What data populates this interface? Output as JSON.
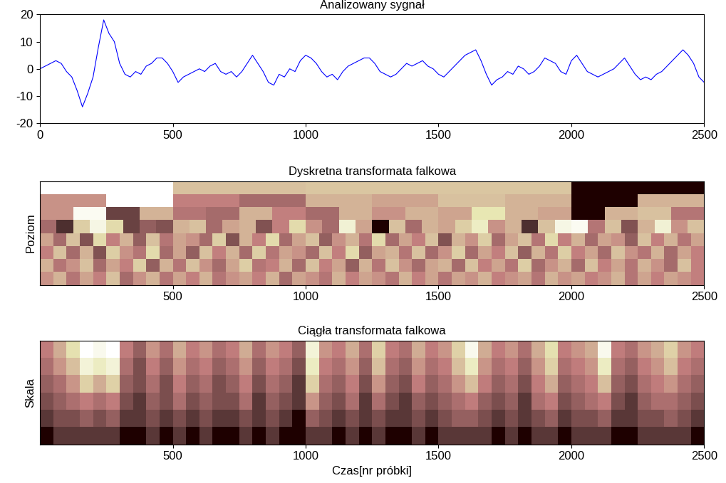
{
  "chart_data": [
    {
      "type": "line",
      "title": "Analizowany sygnał",
      "color": "#0000ff",
      "x": [
        0,
        20,
        40,
        60,
        80,
        100,
        120,
        140,
        160,
        180,
        200,
        220,
        240,
        260,
        280,
        300,
        320,
        340,
        360,
        380,
        400,
        420,
        440,
        460,
        480,
        500,
        520,
        540,
        560,
        580,
        600,
        620,
        640,
        660,
        680,
        700,
        720,
        740,
        760,
        780,
        800,
        820,
        840,
        860,
        880,
        900,
        920,
        940,
        960,
        980,
        1000,
        1020,
        1040,
        1060,
        1080,
        1100,
        1120,
        1140,
        1160,
        1180,
        1200,
        1220,
        1240,
        1260,
        1280,
        1300,
        1320,
        1340,
        1360,
        1380,
        1400,
        1420,
        1440,
        1460,
        1480,
        1500,
        1520,
        1540,
        1560,
        1580,
        1600,
        1620,
        1640,
        1660,
        1680,
        1700,
        1720,
        1740,
        1760,
        1780,
        1800,
        1820,
        1840,
        1860,
        1880,
        1900,
        1920,
        1940,
        1960,
        1980,
        2000,
        2020,
        2040,
        2060,
        2080,
        2100,
        2120,
        2140,
        2160,
        2180,
        2200,
        2220,
        2240,
        2260,
        2280,
        2300,
        2320,
        2340,
        2360,
        2380,
        2400,
        2420,
        2440,
        2460,
        2480,
        2500
      ],
      "values": [
        0,
        1,
        2,
        3,
        2,
        -1,
        -3,
        -8,
        -14,
        -9,
        -3,
        8,
        18,
        13,
        10,
        2,
        -2,
        -3,
        -1,
        -2,
        1,
        2,
        4,
        4,
        2,
        -1,
        -5,
        -3,
        -2,
        -1,
        0,
        -1,
        1,
        2,
        -1,
        -2,
        -1,
        -3,
        -1,
        2,
        5,
        2,
        -1,
        -5,
        -6,
        -2,
        -3,
        0,
        -1,
        3,
        5,
        4,
        2,
        -1,
        -3,
        -2,
        -4,
        -1,
        1,
        2,
        3,
        4,
        4,
        2,
        -1,
        -2,
        -3,
        -2,
        0,
        2,
        1,
        2,
        3,
        1,
        0,
        -2,
        -3,
        -1,
        1,
        3,
        5,
        6,
        7,
        3,
        -2,
        -6,
        -4,
        -3,
        -1,
        -2,
        1,
        0,
        -2,
        -1,
        1,
        4,
        3,
        2,
        -1,
        -2,
        3,
        5,
        2,
        -1,
        -2,
        -3,
        -2,
        -1,
        0,
        2,
        4,
        1,
        -2,
        -4,
        -3,
        -4,
        -2,
        -1,
        1,
        3,
        5,
        7,
        5,
        2,
        -3,
        -5
      ],
      "xlim": [
        0,
        2500
      ],
      "xticks": [
        0,
        500,
        1000,
        1500,
        2000,
        2500
      ],
      "ylim": [
        -20,
        20
      ],
      "yticks": [
        -20,
        -10,
        0,
        10,
        20
      ]
    },
    {
      "type": "heatmap",
      "title": "Dyskretna transformata falkowa",
      "y_label": "Poziom",
      "color": "pink",
      "tick_labels": "x",
      "xlim": [
        0,
        2500
      ],
      "xticks": [
        500,
        1000,
        1500,
        2000,
        2500
      ],
      "cells": [
        [
          1.0,
          0.6,
          0.62,
          0.62,
          0.05
        ],
        [
          0.45,
          1.0,
          0.4,
          0.3,
          0.55,
          0.5,
          0.6,
          0.55,
          0.05,
          0.55
        ],
        [
          0.45,
          0.95,
          0.15,
          0.55,
          0.35,
          0.3,
          0.55,
          0.4,
          0.3,
          0.55,
          0.45,
          0.55,
          0.5,
          0.75,
          0.55,
          0.5,
          0.05,
          0.55,
          0.6,
          0.35
        ],
        [
          0.3,
          0.1,
          0.65,
          0.9,
          0.7,
          0.15,
          0.25,
          0.2,
          0.55,
          0.6,
          0.3,
          0.5,
          0.55,
          0.2,
          0.4,
          0.7,
          0.45,
          0.3,
          0.85,
          0.5,
          0.05,
          0.6,
          0.3,
          0.55,
          0.5,
          0.65,
          0.8,
          0.45,
          0.55,
          0.1,
          0.6,
          0.9,
          0.95,
          0.35,
          0.6,
          0.2,
          0.55,
          0.85,
          0.45,
          0.6
        ],
        [
          0.5,
          0.3,
          0.6,
          0.2,
          0.7,
          0.4,
          0.55,
          0.25,
          0.6,
          0.35,
          0.5,
          0.45,
          0.3,
          0.65,
          0.2,
          0.55,
          0.4,
          0.7,
          0.3,
          0.5,
          0.6,
          0.25,
          0.45,
          0.55,
          0.35,
          0.7,
          0.3,
          0.5,
          0.4,
          0.6,
          0.2,
          0.55,
          0.45,
          0.65,
          0.3,
          0.5,
          0.6,
          0.35,
          0.7,
          0.4,
          0.55,
          0.3,
          0.5,
          0.45,
          0.25,
          0.6,
          0.4,
          0.55,
          0.35,
          0.5
        ],
        [
          0.4,
          0.6,
          0.3,
          0.55,
          0.2,
          0.65,
          0.45,
          0.35,
          0.7,
          0.3,
          0.5,
          0.25,
          0.6,
          0.4,
          0.55,
          0.3,
          0.65,
          0.35,
          0.5,
          0.45,
          0.3,
          0.6,
          0.4,
          0.7,
          0.25,
          0.5,
          0.55,
          0.35,
          0.6,
          0.3,
          0.45,
          0.65,
          0.3,
          0.5,
          0.4,
          0.6,
          0.25,
          0.55,
          0.35,
          0.65,
          0.4,
          0.5,
          0.3,
          0.6,
          0.45,
          0.35,
          0.55,
          0.3,
          0.5,
          0.4
        ],
        [
          0.55,
          0.35,
          0.45,
          0.6,
          0.3,
          0.5,
          0.4,
          0.65,
          0.25,
          0.55,
          0.35,
          0.6,
          0.45,
          0.3,
          0.5,
          0.65,
          0.35,
          0.4,
          0.55,
          0.3,
          0.6,
          0.4,
          0.5,
          0.25,
          0.55,
          0.35,
          0.6,
          0.45,
          0.3,
          0.5,
          0.55,
          0.3,
          0.6,
          0.4,
          0.5,
          0.35,
          0.65,
          0.3,
          0.45,
          0.55,
          0.3,
          0.6,
          0.4,
          0.5,
          0.35,
          0.55,
          0.45,
          0.3,
          0.6,
          0.4
        ],
        [
          0.45,
          0.55,
          0.35,
          0.5,
          0.4,
          0.6,
          0.3,
          0.45,
          0.55,
          0.35,
          0.5,
          0.4,
          0.55,
          0.35,
          0.45,
          0.5,
          0.4,
          0.55,
          0.3,
          0.5,
          0.45,
          0.35,
          0.55,
          0.4,
          0.5,
          0.45,
          0.35,
          0.55,
          0.4,
          0.5,
          0.35,
          0.5,
          0.45,
          0.55,
          0.4,
          0.45,
          0.5,
          0.35,
          0.55,
          0.45,
          0.5,
          0.4,
          0.45,
          0.55,
          0.35,
          0.5,
          0.4,
          0.5,
          0.45,
          0.4
        ]
      ]
    },
    {
      "type": "heatmap",
      "title": "Ciągła transformata falkowa",
      "y_label": "Skala",
      "x_label": "Czas[nr próbki]",
      "color": "pink",
      "tick_labels": "x",
      "xlim": [
        0,
        2500
      ],
      "xticks": [
        500,
        1000,
        1500,
        2000,
        2500
      ],
      "cells": [
        [
          0.5,
          0.6,
          0.75,
          0.95,
          0.9,
          0.95,
          0.5,
          0.4,
          0.55,
          0.45,
          0.6,
          0.5,
          0.55,
          0.45,
          0.5,
          0.6,
          0.45,
          0.55,
          0.5,
          0.4,
          0.85,
          0.55,
          0.5,
          0.6,
          0.45,
          0.7,
          0.5,
          0.45,
          0.6,
          0.5,
          0.55,
          0.7,
          0.9,
          0.6,
          0.5,
          0.55,
          0.45,
          0.6,
          0.75,
          0.5,
          0.55,
          0.6,
          0.9,
          0.5,
          0.45,
          0.55,
          0.6,
          0.7,
          0.55,
          0.5
        ],
        [
          0.45,
          0.55,
          0.65,
          0.85,
          0.8,
          0.85,
          0.45,
          0.35,
          0.5,
          0.4,
          0.55,
          0.45,
          0.5,
          0.4,
          0.45,
          0.55,
          0.4,
          0.5,
          0.45,
          0.35,
          0.8,
          0.5,
          0.45,
          0.55,
          0.4,
          0.65,
          0.45,
          0.4,
          0.55,
          0.45,
          0.5,
          0.65,
          0.8,
          0.55,
          0.45,
          0.5,
          0.4,
          0.55,
          0.7,
          0.45,
          0.5,
          0.55,
          0.8,
          0.45,
          0.4,
          0.5,
          0.55,
          0.65,
          0.5,
          0.45
        ],
        [
          0.4,
          0.45,
          0.55,
          0.7,
          0.6,
          0.7,
          0.4,
          0.35,
          0.45,
          0.35,
          0.5,
          0.4,
          0.45,
          0.35,
          0.4,
          0.5,
          0.35,
          0.45,
          0.4,
          0.3,
          0.7,
          0.45,
          0.4,
          0.5,
          0.35,
          0.55,
          0.4,
          0.35,
          0.5,
          0.4,
          0.45,
          0.55,
          0.65,
          0.5,
          0.4,
          0.45,
          0.35,
          0.5,
          0.6,
          0.4,
          0.45,
          0.5,
          0.65,
          0.4,
          0.35,
          0.45,
          0.5,
          0.55,
          0.45,
          0.4
        ],
        [
          0.35,
          0.4,
          0.45,
          0.5,
          0.45,
          0.5,
          0.35,
          0.3,
          0.4,
          0.35,
          0.45,
          0.35,
          0.4,
          0.35,
          0.35,
          0.45,
          0.3,
          0.4,
          0.35,
          0.3,
          0.55,
          0.4,
          0.35,
          0.45,
          0.3,
          0.45,
          0.35,
          0.3,
          0.4,
          0.35,
          0.4,
          0.45,
          0.5,
          0.4,
          0.35,
          0.4,
          0.3,
          0.45,
          0.5,
          0.35,
          0.4,
          0.45,
          0.5,
          0.35,
          0.3,
          0.4,
          0.45,
          0.45,
          0.4,
          0.35
        ],
        [
          0.3,
          0.35,
          0.35,
          0.4,
          0.35,
          0.4,
          0.3,
          0.3,
          0.35,
          0.3,
          0.35,
          0.3,
          0.35,
          0.3,
          0.3,
          0.35,
          0.3,
          0.35,
          0.3,
          0.25,
          0.4,
          0.35,
          0.3,
          0.35,
          0.3,
          0.35,
          0.3,
          0.3,
          0.35,
          0.3,
          0.35,
          0.4,
          0.4,
          0.35,
          0.3,
          0.35,
          0.3,
          0.35,
          0.4,
          0.3,
          0.35,
          0.35,
          0.4,
          0.3,
          0.3,
          0.35,
          0.35,
          0.4,
          0.35,
          0.3
        ],
        [
          0.25,
          0.3,
          0.3,
          0.3,
          0.3,
          0.3,
          0.25,
          0.25,
          0.3,
          0.25,
          0.3,
          0.25,
          0.3,
          0.25,
          0.25,
          0.3,
          0.25,
          0.3,
          0.25,
          0.25,
          0.3,
          0.3,
          0.25,
          0.3,
          0.25,
          0.3,
          0.25,
          0.25,
          0.3,
          0.25,
          0.3,
          0.3,
          0.3,
          0.3,
          0.25,
          0.3,
          0.25,
          0.3,
          0.3,
          0.25,
          0.3,
          0.3,
          0.3,
          0.25,
          0.25,
          0.3,
          0.3,
          0.3,
          0.3,
          0.25
        ]
      ]
    }
  ]
}
